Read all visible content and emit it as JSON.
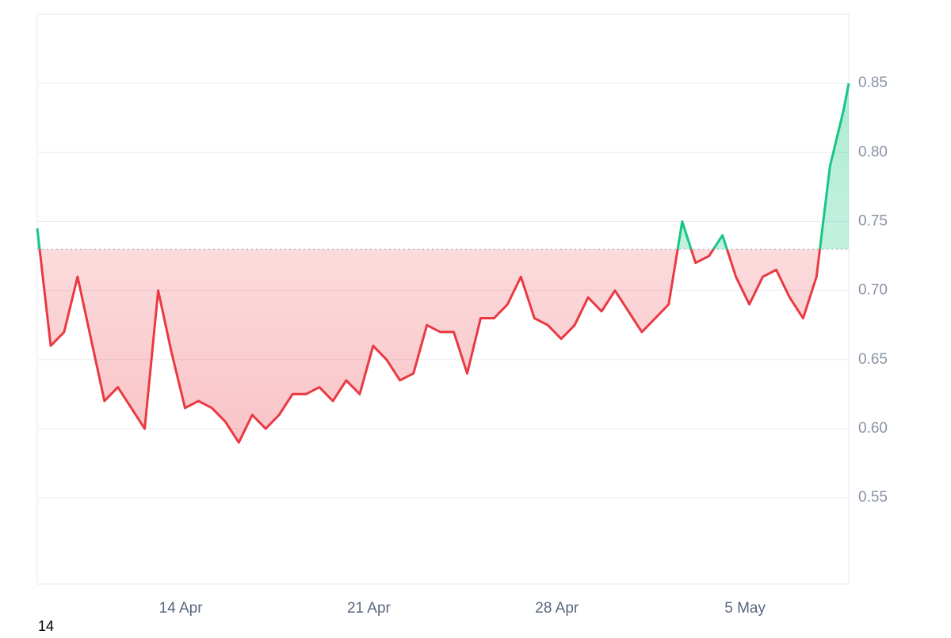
{
  "chart_data": {
    "type": "baseline-line",
    "annotation": "14",
    "baseline": 0.73,
    "up_color": "#16c784",
    "down_color": "#ea3943",
    "grid": true,
    "x": [
      8.66,
      9.16,
      9.66,
      10.16,
      10.66,
      11.16,
      11.66,
      12.16,
      12.66,
      13.16,
      13.66,
      14.16,
      14.66,
      15.16,
      15.66,
      16.16,
      16.66,
      17.16,
      17.66,
      18.16,
      18.66,
      19.16,
      19.66,
      20.16,
      20.66,
      21.16,
      21.66,
      22.16,
      22.66,
      23.16,
      23.66,
      24.16,
      24.66,
      25.16,
      25.66,
      26.16,
      26.66,
      27.16,
      27.66,
      28.16,
      28.66,
      29.16,
      29.66,
      30.16,
      30.66,
      31.16,
      31.66,
      32.16,
      32.66,
      33.16,
      33.66,
      34.16,
      34.66,
      35.16,
      35.66,
      36.16,
      36.66,
      37.16,
      37.66,
      38.16,
      38.66,
      38.86
    ],
    "values": [
      0.745,
      0.66,
      0.67,
      0.71,
      0.665,
      0.62,
      0.63,
      0.615,
      0.6,
      0.7,
      0.655,
      0.615,
      0.62,
      0.615,
      0.605,
      0.59,
      0.61,
      0.6,
      0.61,
      0.625,
      0.625,
      0.63,
      0.62,
      0.635,
      0.625,
      0.66,
      0.65,
      0.635,
      0.64,
      0.675,
      0.67,
      0.67,
      0.64,
      0.68,
      0.68,
      0.69,
      0.71,
      0.68,
      0.675,
      0.665,
      0.675,
      0.695,
      0.685,
      0.7,
      0.685,
      0.67,
      0.68,
      0.69,
      0.75,
      0.72,
      0.725,
      0.74,
      0.71,
      0.69,
      0.71,
      0.715,
      0.695,
      0.68,
      0.71,
      0.79,
      0.83,
      0.85
    ],
    "xlim": [
      8.66,
      38.86
    ],
    "xticks": [
      {
        "value": 14,
        "label": "14 Apr"
      },
      {
        "value": 21,
        "label": "21 Apr"
      },
      {
        "value": 28,
        "label": "28 Apr"
      },
      {
        "value": 35,
        "label": "5 May"
      }
    ],
    "ylim": [
      0.4875,
      0.9
    ],
    "yticks": [
      0.55,
      {
        "value": 0.6,
        "label": "0.60"
      },
      0.65,
      {
        "value": 0.7,
        "label": "0.70"
      },
      0.75,
      {
        "value": 0.8,
        "label": "0.80"
      },
      0.85
    ]
  }
}
